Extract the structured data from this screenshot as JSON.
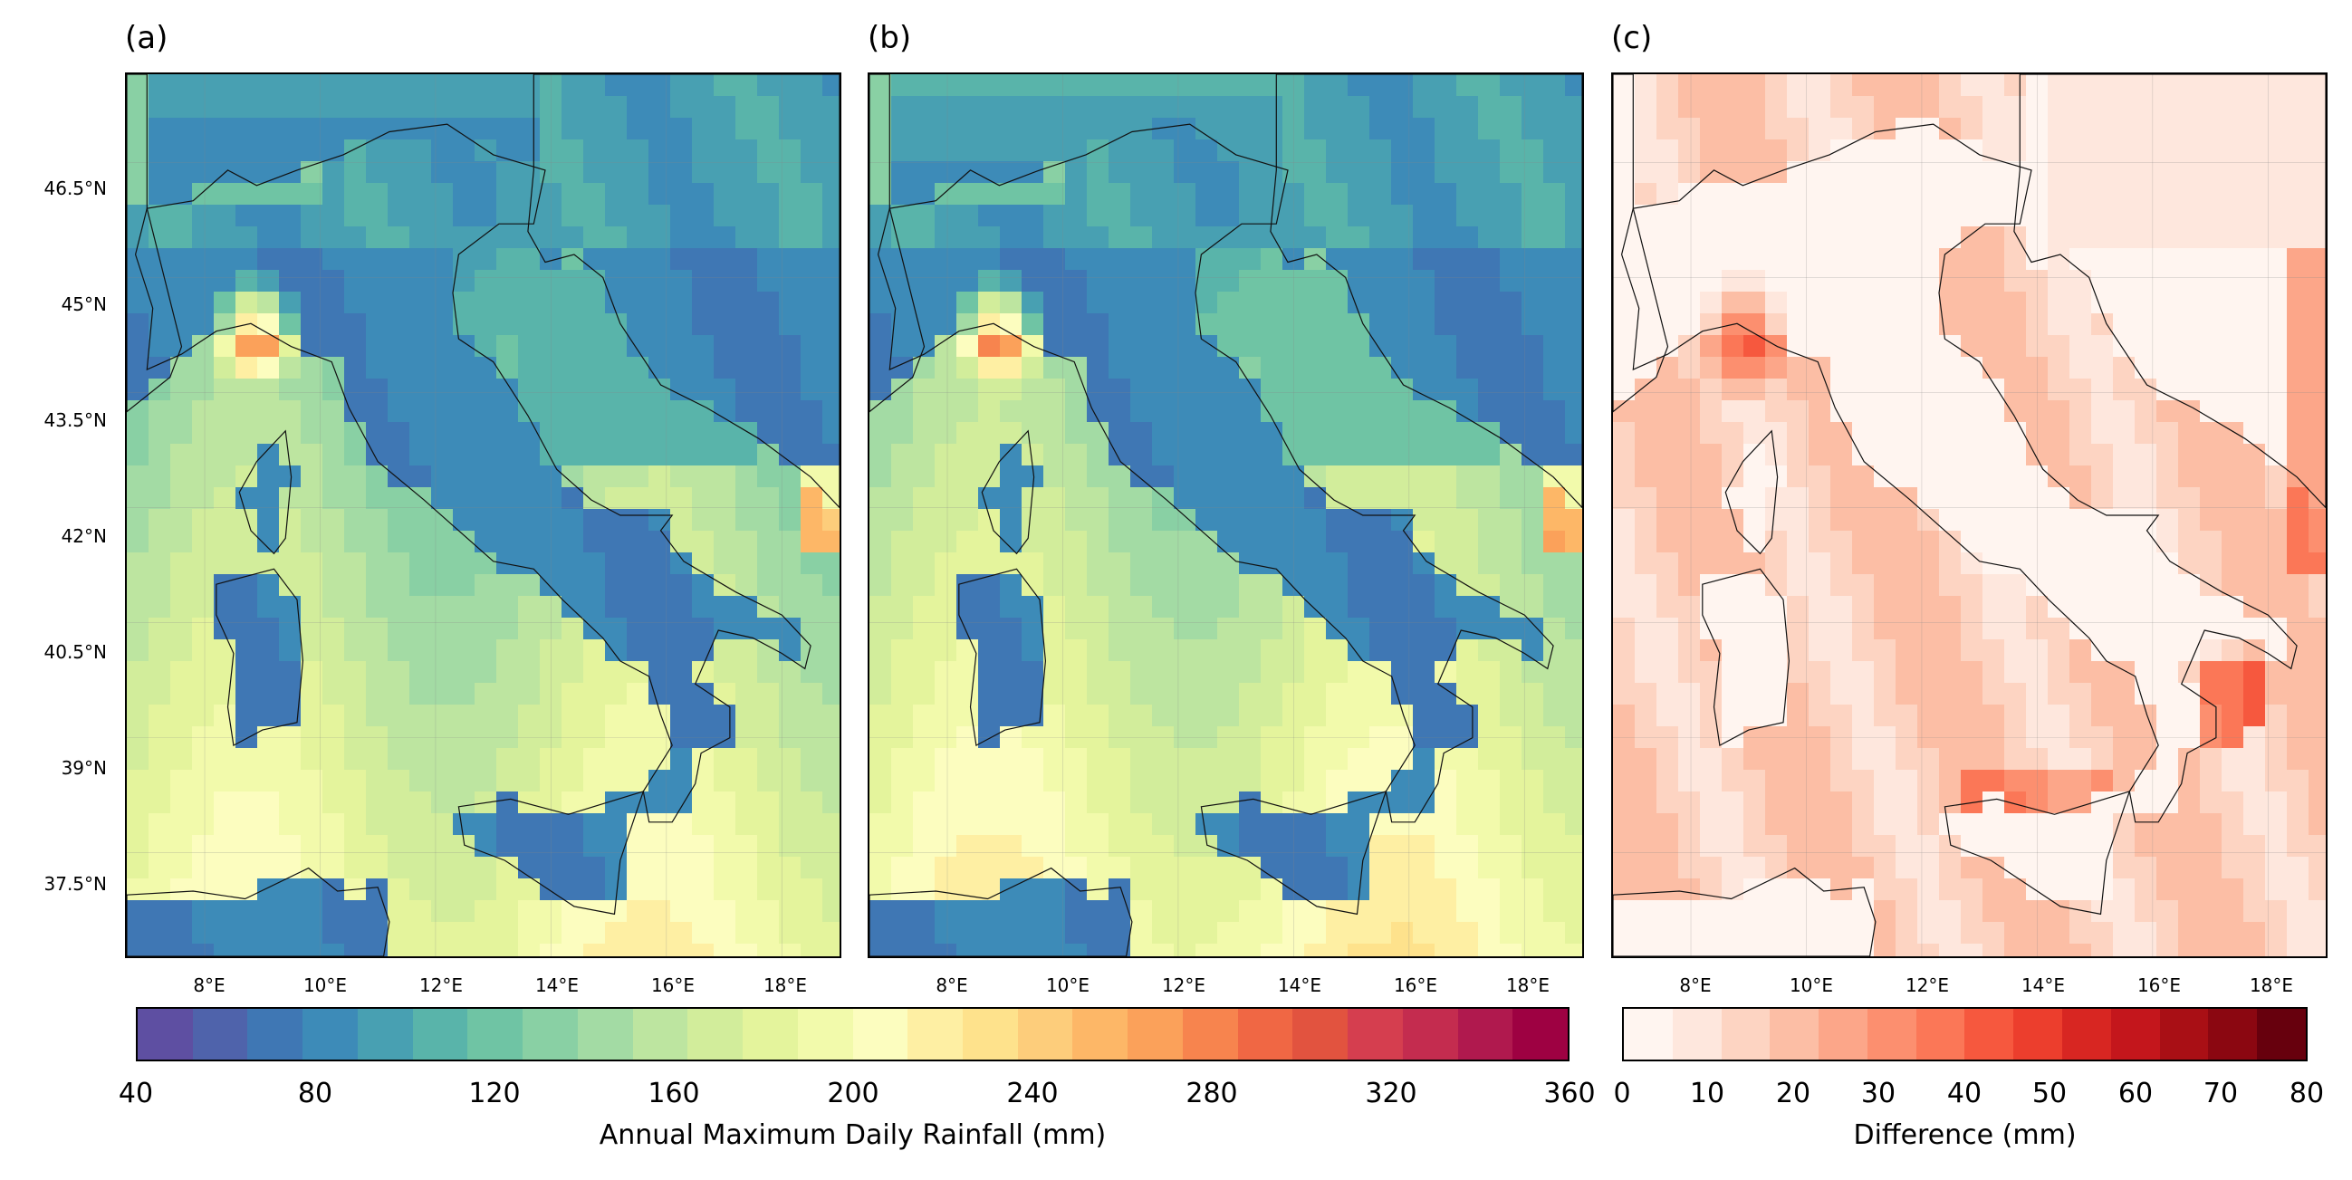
{
  "panels": [
    {
      "label": "(a)",
      "scheme": "spectral"
    },
    {
      "label": "(b)",
      "scheme": "spectral"
    },
    {
      "label": "(c)",
      "scheme": "reds"
    }
  ],
  "lat_ticks": [
    "46.5°N",
    "45°N",
    "43.5°N",
    "42°N",
    "40.5°N",
    "39°N",
    "37.5°N"
  ],
  "lon_ticks": [
    "8°E",
    "10°E",
    "12°E",
    "14°E",
    "16°E",
    "18°E"
  ],
  "colorbar_main": {
    "label": "Annual Maximum Daily Rainfall (mm)",
    "ticks": [
      "40",
      "80",
      "120",
      "160",
      "200",
      "240",
      "280",
      "320",
      "360"
    ],
    "colors": [
      "#5e4fa2",
      "#4f63ab",
      "#3f77b4",
      "#3d8bb8",
      "#48a0b2",
      "#59b4aa",
      "#6fc4a4",
      "#89d0a4",
      "#a3dba4",
      "#bde5a0",
      "#d2ed9b",
      "#e4f49c",
      "#f2faab",
      "#fcfdbf",
      "#feefa3",
      "#fee28c",
      "#fdcd7b",
      "#fdb767",
      "#fba15a",
      "#f7844e",
      "#f06744",
      "#e2533f",
      "#d53e4f",
      "#c42c4f",
      "#b0194e",
      "#9e0142"
    ]
  },
  "colorbar_diff": {
    "label": "Difference (mm)",
    "ticks": [
      "0",
      "10",
      "20",
      "30",
      "40",
      "50",
      "60",
      "70",
      "80"
    ],
    "colors": [
      "#fff5f0",
      "#fee7dd",
      "#fdd4c2",
      "#fcbea5",
      "#fca689",
      "#fc8f6f",
      "#fb7757",
      "#f6583e",
      "#ec3e2d",
      "#d82622",
      "#c4161c",
      "#a90f15",
      "#8b0711",
      "#67000d"
    ]
  }
}
